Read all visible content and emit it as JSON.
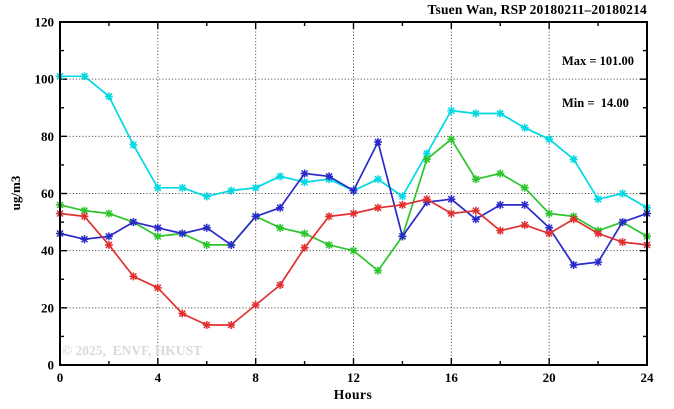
{
  "title": "Tsuen Wan, RSP 20180211–20180214",
  "legend": {
    "line1": "Max = 101.00",
    "line2": "Min =  14.00"
  },
  "watermark": "© 2025,  ENVF, HKUST",
  "chart_data": {
    "type": "line",
    "title": "Tsuen Wan, RSP 20180211-20180214",
    "xlabel": "Hours",
    "ylabel": "ug/m3",
    "xlim": [
      0,
      24
    ],
    "ylim": [
      0,
      120
    ],
    "xticks": [
      0,
      4,
      8,
      12,
      16,
      20,
      24
    ],
    "yticks": [
      0,
      20,
      40,
      60,
      80,
      100,
      120
    ],
    "x_minor_step": 2,
    "y_minor_step": 10,
    "grid": true,
    "legend_position": "top-right-inside",
    "stats": {
      "max": 101.0,
      "min": 14.0
    },
    "x": [
      0,
      1,
      2,
      3,
      4,
      5,
      6,
      7,
      8,
      9,
      10,
      11,
      12,
      13,
      14,
      15,
      16,
      17,
      18,
      19,
      20,
      21,
      22,
      23,
      24
    ],
    "series": [
      {
        "name": "series-cyan",
        "color": "#00d9e2",
        "values": [
          101,
          101,
          94,
          77,
          62,
          62,
          59,
          61,
          62,
          66,
          64,
          65,
          61,
          65,
          59,
          74,
          89,
          88,
          88,
          83,
          79,
          72,
          58,
          60,
          55
        ]
      },
      {
        "name": "series-green",
        "color": "#2cc62c",
        "values": [
          56,
          54,
          53,
          50,
          45,
          46,
          42,
          42,
          52,
          48,
          46,
          42,
          40,
          33,
          45,
          72,
          79,
          65,
          67,
          62,
          53,
          52,
          47,
          50,
          45
        ]
      },
      {
        "name": "series-blue",
        "color": "#2a2aca",
        "values": [
          46,
          44,
          45,
          50,
          48,
          46,
          48,
          42,
          52,
          55,
          67,
          66,
          61,
          78,
          45,
          57,
          58,
          51,
          56,
          56,
          48,
          35,
          36,
          50,
          53
        ]
      },
      {
        "name": "series-red",
        "color": "#e03030",
        "values": [
          53,
          52,
          42,
          31,
          27,
          18,
          14,
          14,
          21,
          28,
          41,
          52,
          53,
          55,
          56,
          58,
          53,
          54,
          47,
          49,
          46,
          51,
          46,
          43,
          42
        ]
      }
    ]
  }
}
